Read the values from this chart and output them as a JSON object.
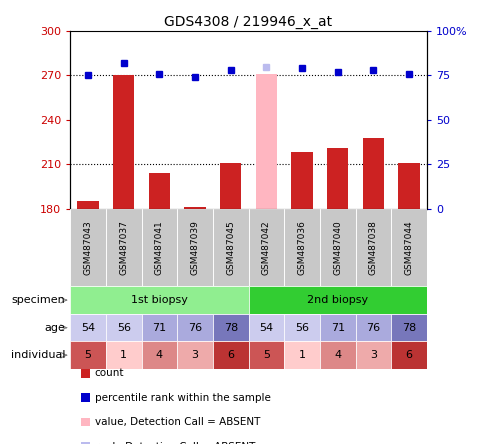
{
  "title": "GDS4308 / 219946_x_at",
  "samples": [
    "GSM487043",
    "GSM487037",
    "GSM487041",
    "GSM487039",
    "GSM487045",
    "GSM487042",
    "GSM487036",
    "GSM487040",
    "GSM487038",
    "GSM487044"
  ],
  "count_values": [
    185,
    270,
    204,
    181,
    211,
    271,
    218,
    221,
    228,
    211
  ],
  "rank_values": [
    75,
    82,
    76,
    74,
    78,
    80,
    79,
    77,
    78,
    76
  ],
  "absent_mask": [
    false,
    false,
    false,
    false,
    false,
    true,
    false,
    false,
    false,
    false
  ],
  "ylim_left": [
    180,
    300
  ],
  "ylim_right": [
    0,
    100
  ],
  "yticks_left": [
    180,
    210,
    240,
    270,
    300
  ],
  "yticks_right": [
    0,
    25,
    50,
    75,
    100
  ],
  "ytick_labels_left": [
    "180",
    "210",
    "240",
    "270",
    "300"
  ],
  "ytick_labels_right": [
    "0",
    "25",
    "50",
    "75",
    "100%"
  ],
  "specimen_colors": [
    "#90EE90",
    "#32CD32"
  ],
  "age_colors": [
    "#CCCCEE",
    "#CCCCEE",
    "#AAAADD",
    "#AAAADD",
    "#7777BB",
    "#CCCCEE",
    "#CCCCEE",
    "#AAAADD",
    "#AAAADD",
    "#7777BB"
  ],
  "age_values": [
    54,
    56,
    71,
    76,
    78,
    54,
    56,
    71,
    76,
    78
  ],
  "individual_values": [
    5,
    1,
    4,
    3,
    6,
    5,
    1,
    4,
    3,
    6
  ],
  "individual_colors": [
    "#CC5555",
    "#FFCCCC",
    "#DD8888",
    "#EEAAAA",
    "#BB3333",
    "#CC5555",
    "#FFCCCC",
    "#DD8888",
    "#EEAAAA",
    "#BB3333"
  ],
  "bar_color": "#CC2222",
  "absent_bar_color": "#FFB6C1",
  "rank_color": "#0000CC",
  "absent_rank_color": "#BBBBEE",
  "label_color_left": "#CC0000",
  "label_color_right": "#0000CC",
  "sample_bg_color": "#C8C8C8",
  "legend_items": [
    [
      "#CC2222",
      "count"
    ],
    [
      "#0000CC",
      "percentile rank within the sample"
    ],
    [
      "#FFB6C1",
      "value, Detection Call = ABSENT"
    ],
    [
      "#BBBBEE",
      "rank, Detection Call = ABSENT"
    ]
  ]
}
